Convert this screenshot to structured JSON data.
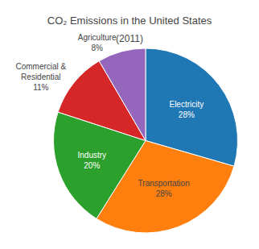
{
  "chart_data": {
    "type": "pie",
    "title": "CO₂ Emissions in the United States",
    "subtitle": "(2011)",
    "categories": [
      "Electricity",
      "Transportation",
      "Industry",
      "Commercial &\nResidential",
      "Agriculture"
    ],
    "values": [
      28,
      28,
      20,
      11,
      8
    ],
    "value_labels": [
      "28%",
      "28%",
      "20%",
      "11%",
      "8%"
    ],
    "data_labels": true
  }
}
